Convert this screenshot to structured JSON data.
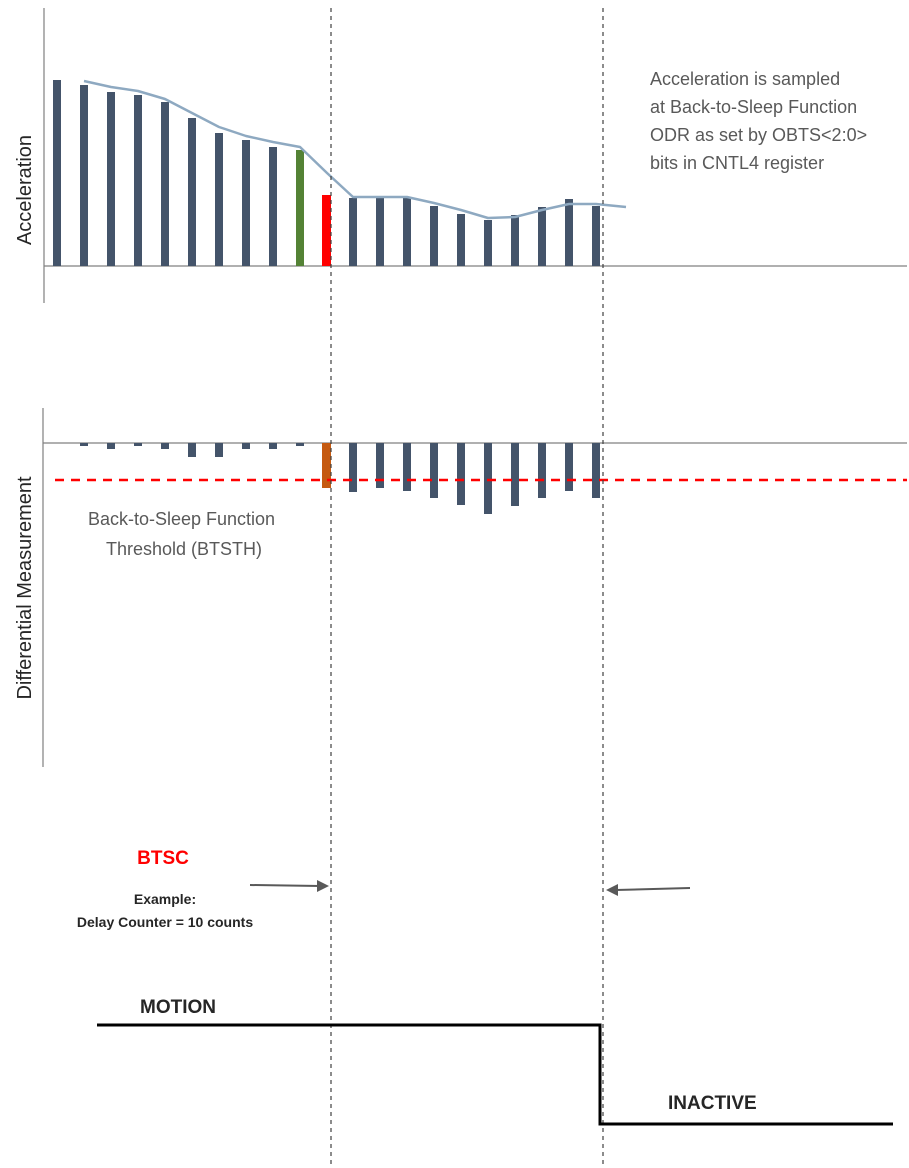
{
  "diagram": {
    "top_panel": {
      "axis_label": "Acceleration",
      "note_lines": [
        "Acceleration is sampled",
        "at Back-to-Sleep Function",
        "ODR as set by OBTS<2:0>",
        "bits in CNTL4 register"
      ]
    },
    "middle_panel": {
      "axis_label": "Differential Measurement",
      "threshold_label_lines": [
        "Back-to-Sleep Function",
        "Threshold (BTSTH)"
      ]
    },
    "counter": {
      "title": "BTSC",
      "example_line1": "Example:",
      "example_line2": "Delay Counter = 10 counts"
    },
    "state": {
      "motion_label": "MOTION",
      "inactive_label": "INACTIVE"
    },
    "colors": {
      "bar": "#44546a",
      "highlight_green": "#548235",
      "highlight_red": "#ff0000",
      "highlight_orange": "#c55a11",
      "envelope": "#8ea9c1",
      "threshold": "#ff0000",
      "axis": "#808080"
    }
  }
}
